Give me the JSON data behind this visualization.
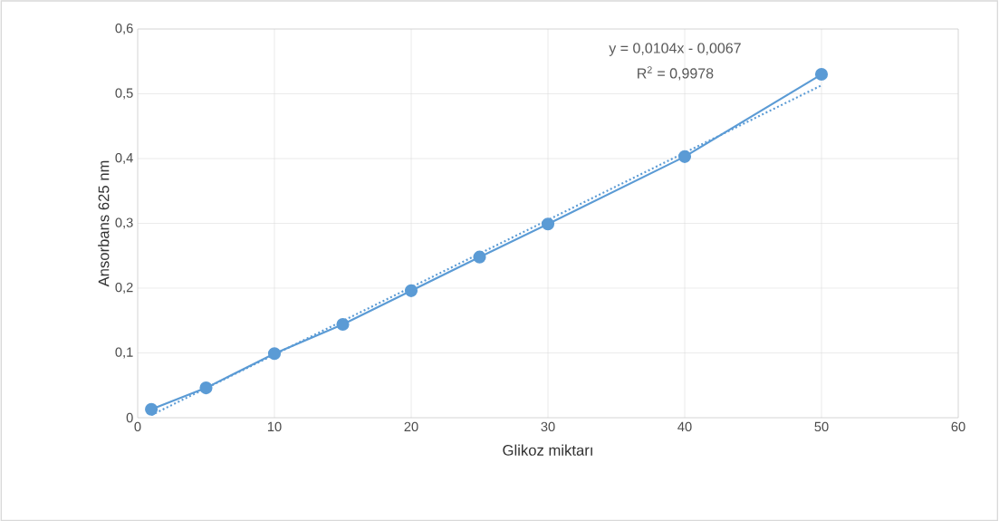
{
  "chart_data": {
    "type": "line",
    "xlabel": "Glikoz miktarı",
    "ylabel": "Ansorbans 625 nm",
    "xlim": [
      0,
      60
    ],
    "xticks": [
      0,
      10,
      20,
      30,
      40,
      50,
      60
    ],
    "ylim": [
      0,
      0.6
    ],
    "yticks": [
      0,
      {
        "value": 0.1,
        "label": "0,1"
      },
      {
        "value": 0.2,
        "label": "0,2"
      },
      {
        "value": 0.3,
        "label": "0,3"
      },
      {
        "value": 0.4,
        "label": "0,4"
      },
      {
        "value": 0.5,
        "label": "0,5"
      },
      {
        "value": 0.6,
        "label": "0,6"
      }
    ],
    "grid": true,
    "annotations": [
      "y = 0,0104x - 0,0067",
      "R$^{2}$ = 0,9978"
    ],
    "series": [
      {
        "color": "#5b9bd5",
        "marker": "circle",
        "line_style": "solid",
        "x": [
          1,
          5,
          10,
          15,
          20,
          25,
          30,
          40,
          50
        ],
        "values": [
          0.013,
          0.046,
          0.099,
          0.144,
          0.196,
          0.248,
          0.299,
          0.403,
          0.53
        ]
      },
      {
        "color": "#5b9bd5",
        "marker": "none",
        "line_style": "dotted",
        "x": [
          1,
          50
        ],
        "values": [
          0.004,
          0.513
        ]
      }
    ]
  }
}
